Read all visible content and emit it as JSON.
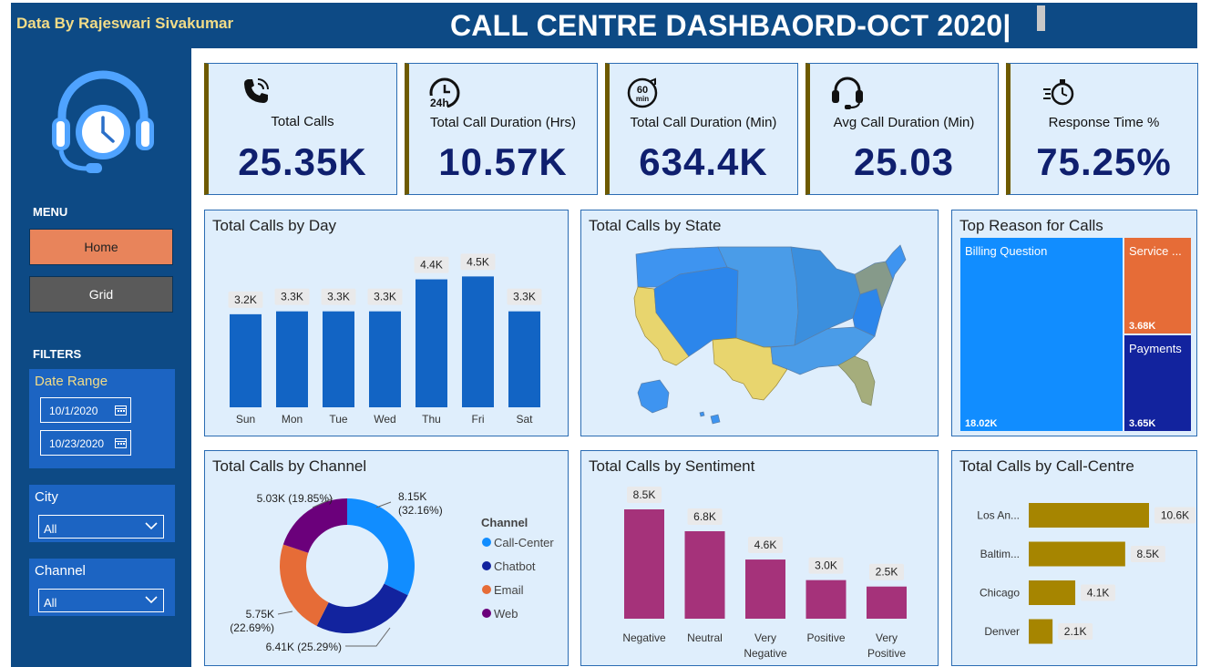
{
  "header": {
    "credit": "Data By Rajeswari Sivakumar",
    "title": "CALL CENTRE DASHBAORD-OCT 2020|"
  },
  "sidebar": {
    "menu_label": "MENU",
    "home_label": "Home",
    "grid_label": "Grid",
    "filters_label": "FILTERS",
    "date_range": {
      "title": "Date Range",
      "start": "10/1/2020",
      "end": "10/23/2020"
    },
    "city": {
      "title": "City",
      "selected": "All"
    },
    "channel": {
      "title": "Channel",
      "selected": "All"
    }
  },
  "kpis": [
    {
      "label": "Total Calls",
      "value": "25.35K",
      "icon": "phone-icon"
    },
    {
      "label": "Total Call Duration (Hrs)",
      "value": "10.57K",
      "icon": "clock-24h-icon"
    },
    {
      "label": "Total Call Duration (Min)",
      "value": "634.4K",
      "icon": "timer-60-icon"
    },
    {
      "label": "Avg Call Duration (Min)",
      "value": "25.03",
      "icon": "headset-icon"
    },
    {
      "label": "Response Time %",
      "value": "75.25%",
      "icon": "stopwatch-icon"
    }
  ],
  "icon_24h": "24h",
  "icon_60": "60",
  "icon_min": "min",
  "panels": {
    "by_day": "Total Calls by Day",
    "by_state": "Total Calls by State",
    "top_reason": "Top Reason for Calls",
    "by_channel": "Total Calls by Channel",
    "by_sentiment": "Total Calls by Sentiment",
    "by_centre": "Total Calls by Call-Centre"
  },
  "colors": {
    "header": "#0d4a85",
    "card": "#dfeefc",
    "day_bar": "#1264c4",
    "sentiment_bar": "#a5327a",
    "centre_bar": "#a68500",
    "kpi_value": "#0f1f6e"
  },
  "chart_data": [
    {
      "type": "bar",
      "title": "Total Calls by Day",
      "categories": [
        "Sun",
        "Mon",
        "Tue",
        "Wed",
        "Thu",
        "Fri",
        "Sat"
      ],
      "values": [
        3.2,
        3.3,
        3.3,
        3.3,
        4.4,
        4.5,
        3.3
      ],
      "labels": [
        "3.2K",
        "3.3K",
        "3.3K",
        "3.3K",
        "4.4K",
        "4.5K",
        "3.3K"
      ],
      "ylim": [
        0,
        4.7
      ]
    },
    {
      "type": "map",
      "title": "Total Calls by State"
    },
    {
      "type": "treemap",
      "title": "Top Reason for Calls",
      "categories": [
        "Billing Question",
        "Service ...",
        "Payments"
      ],
      "values": [
        18.02,
        3.68,
        3.65
      ],
      "labels": [
        "18.02K",
        "3.68K",
        "3.65K"
      ]
    },
    {
      "type": "pie",
      "title": "Total Calls by Channel",
      "legend_title": "Channel",
      "categories": [
        "Call-Center",
        "Chatbot",
        "Email",
        "Web"
      ],
      "values": [
        32.16,
        25.29,
        22.69,
        19.85
      ],
      "labels": [
        [
          "8.15K",
          "(32.16%)"
        ],
        [
          "6.41K (25.29%)"
        ],
        [
          "5.75K",
          "(22.69%)"
        ],
        [
          "5.03K (19.85%)"
        ]
      ],
      "colors": [
        "#118dff",
        "#12239e",
        "#e66c37",
        "#6b007b"
      ]
    },
    {
      "type": "bar",
      "title": "Total Calls by Sentiment",
      "categories": [
        [
          "Negative"
        ],
        [
          "Neutral"
        ],
        [
          "Very",
          "Negative"
        ],
        [
          "Positive"
        ],
        [
          "Very",
          "Positive"
        ]
      ],
      "values": [
        8.5,
        6.8,
        4.6,
        3.0,
        2.5
      ],
      "labels": [
        "8.5K",
        "6.8K",
        "4.6K",
        "3.0K",
        "2.5K"
      ],
      "ylim": [
        0,
        8.5
      ]
    },
    {
      "type": "bar",
      "orientation": "horizontal",
      "title": "Total Calls by Call-Centre",
      "categories": [
        "Los An...",
        "Baltim...",
        "Chicago",
        "Denver"
      ],
      "values": [
        10.6,
        8.5,
        4.1,
        2.1
      ],
      "labels": [
        "10.6K",
        "8.5K",
        "4.1K",
        "2.1K"
      ],
      "xlim": [
        0,
        10.6
      ]
    }
  ]
}
